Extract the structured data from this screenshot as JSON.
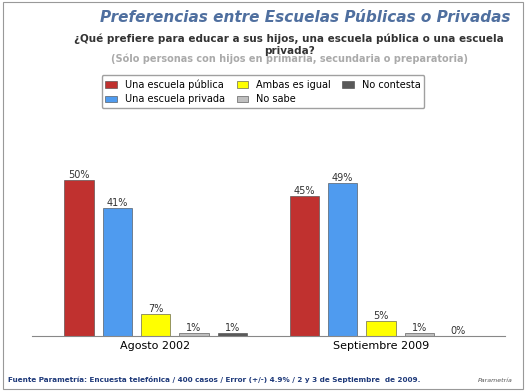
{
  "chart_data": {
    "type": "bar",
    "title": "Preferencias entre Escuelas Públicas o Privadas",
    "subtitle": "¿Qué prefiere para educar a sus hijos, una escuela pública o una escuela privada?",
    "subtitle_note": "(Sólo personas con hijos en primaria, secundaria o preparatoria)",
    "source": "Fuente Parametría: Encuesta telefónica / 400 casos / Error (+/-) 4.9% / 2 y 3 de Septiembre  de 2009.",
    "logo": "Parametría",
    "categories": [
      "Agosto 2002",
      "Septiembre 2009"
    ],
    "series": [
      {
        "name": "Una escuela pública",
        "color": "#C0312F",
        "values": [
          50,
          45
        ],
        "value_labels": [
          "50%",
          "45%"
        ]
      },
      {
        "name": "Una escuela privada",
        "color": "#4F9BEF",
        "values": [
          41,
          49
        ],
        "value_labels": [
          "41%",
          "49%"
        ]
      },
      {
        "name": "Ambas es igual",
        "color": "#FFFF00",
        "values": [
          7,
          5
        ],
        "value_labels": [
          "7%",
          "5%"
        ]
      },
      {
        "name": "No sabe",
        "color": "#BFBFBF",
        "values": [
          1,
          1
        ],
        "value_labels": [
          "1%",
          "1%"
        ]
      },
      {
        "name": "No contesta",
        "color": "#595959",
        "values": [
          1,
          0
        ],
        "value_labels": [
          "1%",
          "0%"
        ]
      }
    ],
    "legend": "upper center",
    "data_labels": true,
    "tick_labels": "x",
    "grid": false
  }
}
